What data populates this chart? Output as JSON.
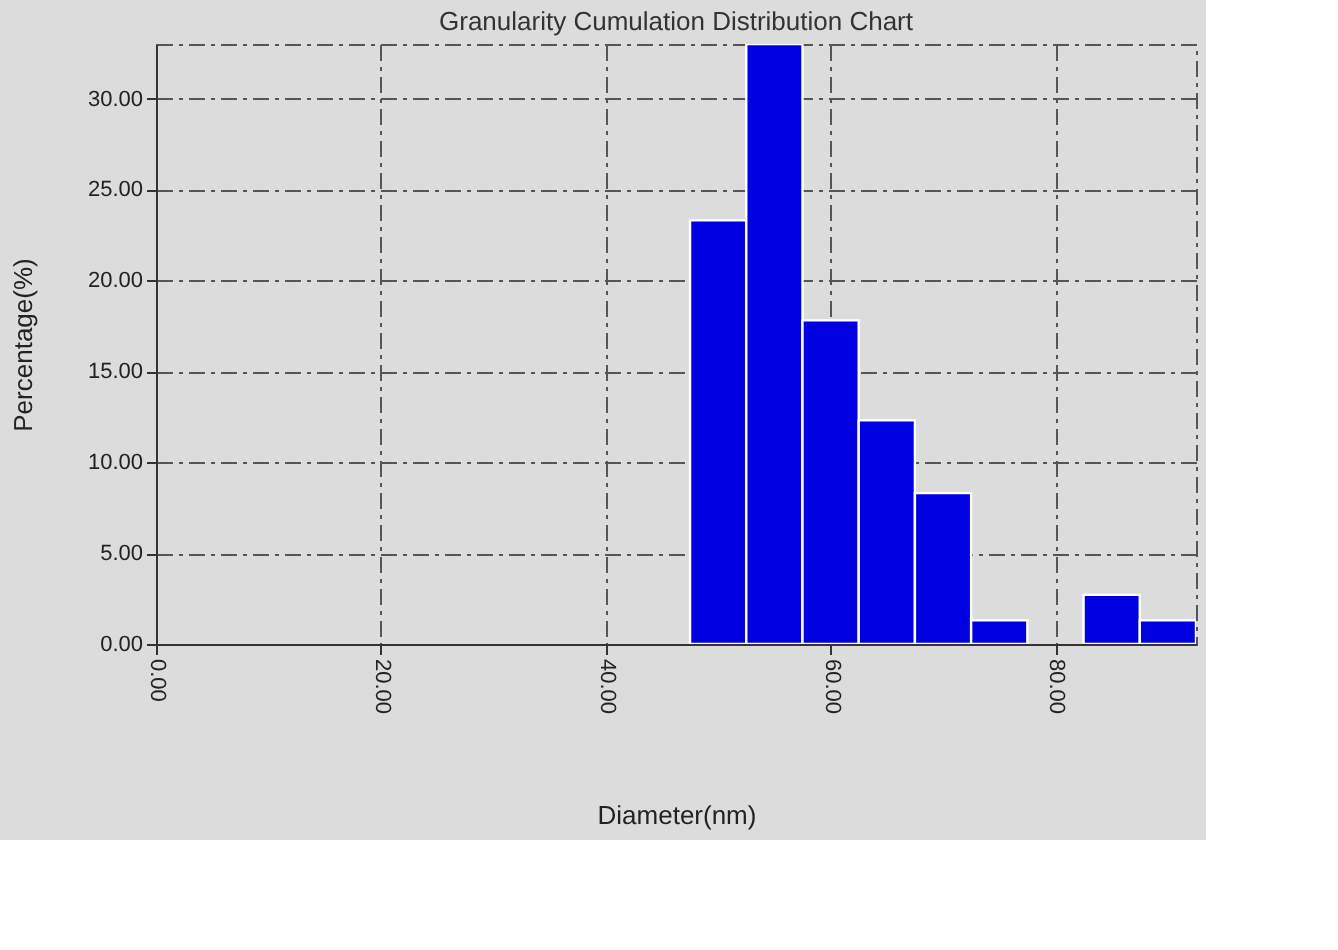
{
  "chart_data": {
    "type": "histogram",
    "title": "Granularity Cumulation Distribution  Chart",
    "xlabel": "Diameter(nm)",
    "ylabel": "Percentage(%)",
    "bins": [
      47.5,
      52.5,
      57.5,
      62.5,
      67.5,
      72.5,
      77.5,
      82.5,
      87.5,
      92.5
    ],
    "values": [
      23.3,
      33,
      17.8,
      12.3,
      8.3,
      1.3,
      0,
      2.7,
      1.3
    ],
    "color": "#0000e0",
    "xlim": [
      0,
      92.5
    ],
    "ylim": [
      0,
      33
    ],
    "xticks": [
      {
        "value": 0,
        "label": "0.00"
      },
      {
        "value": 20,
        "label": "20.00"
      },
      {
        "value": 40,
        "label": "40.00"
      },
      {
        "value": 60,
        "label": "60.00"
      },
      {
        "value": 80,
        "label": "80.00"
      }
    ],
    "yticks": [
      {
        "value": 0,
        "label": "0.00"
      },
      {
        "value": 5,
        "label": "5.00"
      },
      {
        "value": 10,
        "label": "10.00"
      },
      {
        "value": 15,
        "label": "15.00"
      },
      {
        "value": 20,
        "label": "20.00"
      },
      {
        "value": 25,
        "label": "25.00"
      },
      {
        "value": 30,
        "label": "30.00"
      }
    ],
    "grid": true
  }
}
